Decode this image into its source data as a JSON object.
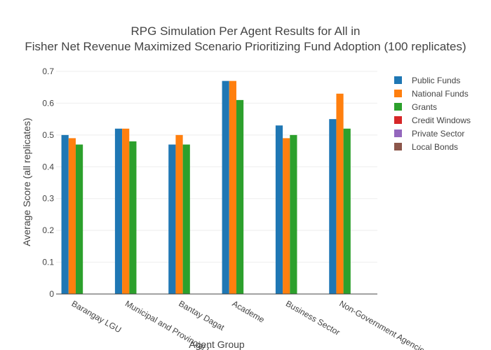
{
  "chart_data": {
    "type": "bar",
    "title_line1": "RPG Simulation Per Agent Results for All in",
    "title_line2": "Fisher Net Revenue Maximized Scenario Prioritizing Fund Adoption (100 replicates)",
    "xlabel": "Agent Group",
    "ylabel": "Average Score (all replicates)",
    "ylim": [
      0,
      0.7
    ],
    "yticks": [
      "0",
      "0.1",
      "0.2",
      "0.3",
      "0.4",
      "0.5",
      "0.6",
      "0.7"
    ],
    "grid": true,
    "legend_position": "top-right",
    "categories": [
      "Barangay LGU",
      "Municipal and Provincial LGU",
      "Bantay Dagat",
      "Academe",
      "Business Sector",
      "Non-Government Agencies"
    ],
    "series": [
      {
        "name": "Public Funds",
        "color": "#1f77b4",
        "values": [
          0.5,
          0.52,
          0.47,
          0.67,
          0.53,
          0.55
        ]
      },
      {
        "name": "National Funds",
        "color": "#ff7f0e",
        "values": [
          0.49,
          0.52,
          0.5,
          0.67,
          0.49,
          0.63
        ]
      },
      {
        "name": "Grants",
        "color": "#2ca02c",
        "values": [
          0.47,
          0.48,
          0.47,
          0.61,
          0.5,
          0.52
        ]
      },
      {
        "name": "Credit Windows",
        "color": "#d62728",
        "values": [
          0,
          0,
          0,
          0,
          0,
          0
        ]
      },
      {
        "name": "Private Sector",
        "color": "#9467bd",
        "values": [
          0,
          0,
          0,
          0,
          0,
          0
        ]
      },
      {
        "name": "Local Bonds",
        "color": "#8c564b",
        "values": [
          0,
          0,
          0,
          0,
          0,
          0
        ]
      }
    ]
  }
}
